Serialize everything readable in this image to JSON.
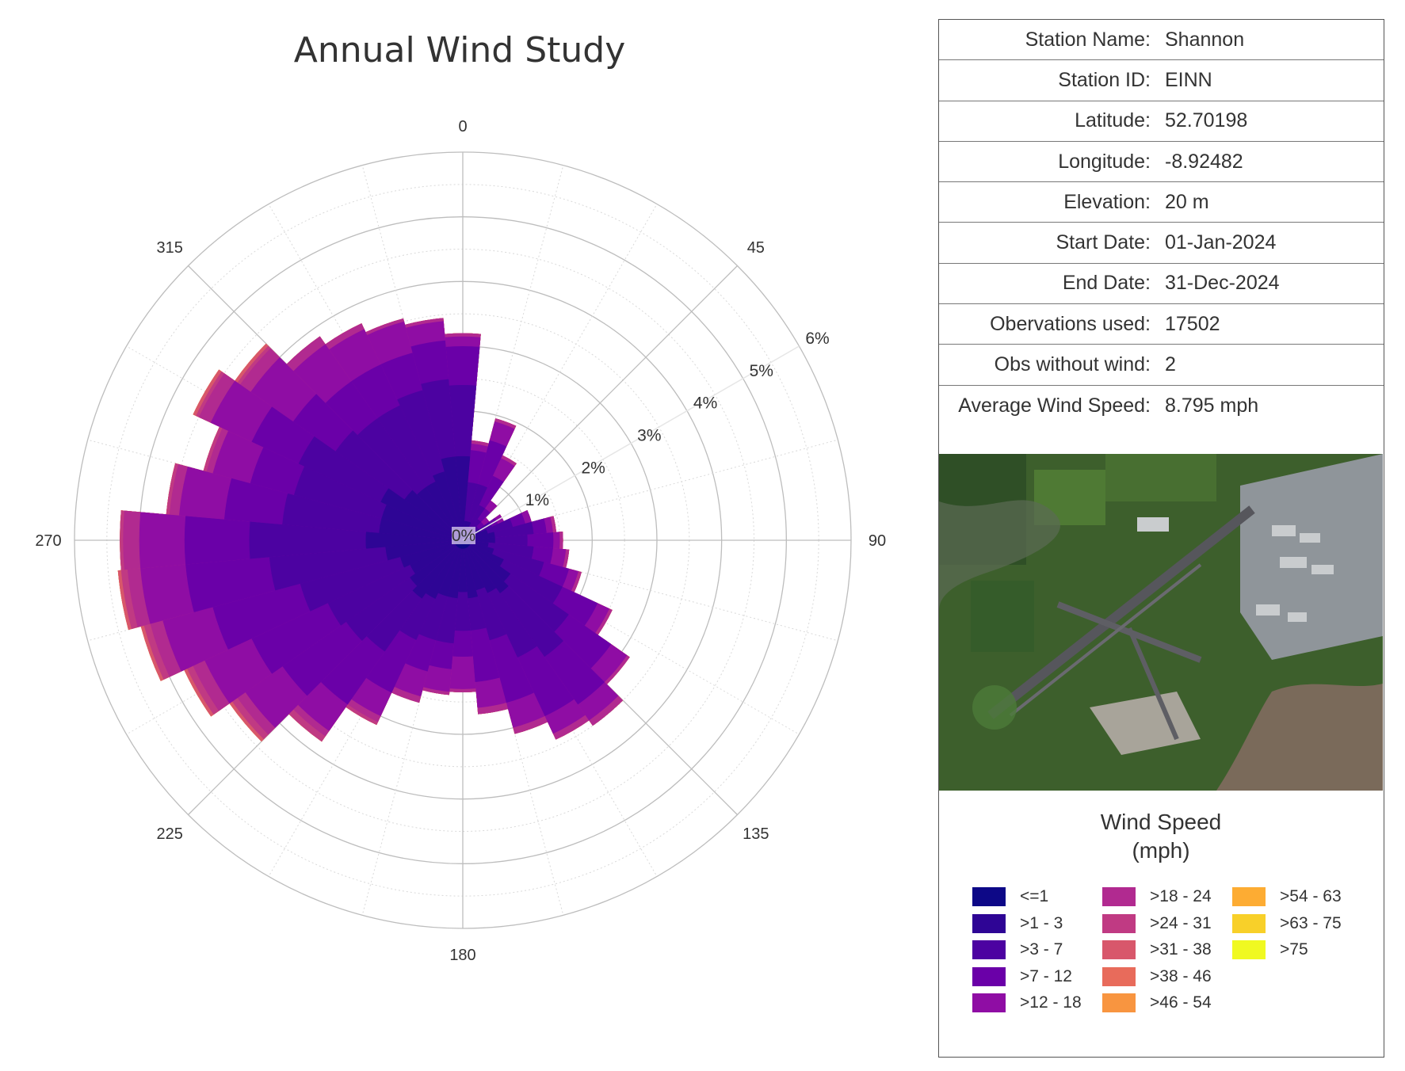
{
  "chart_title": "Annual Wind Study",
  "chart_data": {
    "type": "polar-bar",
    "title": "Annual Wind Study",
    "angular_ticks": [
      "0",
      "45",
      "90",
      "135",
      "180",
      "225",
      "270",
      "315"
    ],
    "radial_ticks": [
      "0%",
      "1%",
      "2%",
      "3%",
      "4%",
      "5%",
      "6%"
    ],
    "radial_range": [
      0,
      6
    ],
    "sector_width_deg": 10,
    "directions": [
      0,
      10,
      20,
      30,
      40,
      50,
      60,
      70,
      80,
      90,
      100,
      110,
      120,
      130,
      140,
      150,
      160,
      170,
      180,
      190,
      200,
      210,
      220,
      230,
      240,
      250,
      260,
      270,
      280,
      290,
      300,
      310,
      320,
      330,
      340,
      350
    ],
    "bins": [
      "<=1",
      ">1 - 3",
      ">3 - 7",
      ">7 - 12",
      ">12 - 18",
      ">18 - 24",
      ">24 - 31",
      ">31 - 38",
      ">38 - 46",
      ">46 - 54",
      ">54 - 63",
      ">63 - 75",
      ">75"
    ],
    "cumulative_frequency_percent": [
      [
        0.13,
        0.13,
        0.13,
        0.13,
        0.13,
        0.13,
        0.13,
        0.13,
        0.13,
        0.13,
        0.13,
        0.13,
        0.13,
        0.13,
        0.13,
        0.13,
        0.13,
        0.13,
        0.13,
        0.13,
        0.13,
        0.13,
        0.13,
        0.13,
        0.13,
        0.13,
        0.13,
        0.13,
        0.13,
        0.13,
        0.13,
        0.13,
        0.13,
        0.13,
        0.13,
        0.13
      ],
      [
        1.3,
        0.3,
        0.3,
        0.2,
        0.15,
        0.15,
        0.3,
        0.4,
        0.5,
        0.5,
        0.4,
        0.5,
        0.7,
        0.9,
        1.0,
        0.9,
        0.8,
        0.9,
        0.8,
        0.9,
        0.9,
        1.0,
        1.1,
        1.0,
        0.9,
        1.0,
        1.2,
        1.5,
        1.3,
        1.3,
        1.4,
        1.1,
        1.0,
        1.0,
        1.1,
        1.3
      ],
      [
        2.4,
        0.9,
        0.9,
        0.6,
        0.4,
        0.3,
        0.5,
        0.8,
        1.1,
        1.0,
        1.1,
        1.3,
        1.7,
        2.0,
        2.2,
        2.0,
        1.6,
        1.4,
        1.4,
        1.6,
        1.6,
        1.7,
        2.1,
        2.2,
        2.3,
        2.6,
        3.0,
        3.3,
        2.8,
        2.7,
        2.8,
        2.4,
        2.3,
        2.3,
        2.4,
        2.5
      ],
      [
        3.0,
        1.4,
        1.6,
        1.1,
        0.6,
        0.4,
        0.6,
        1.0,
        1.3,
        1.4,
        1.4,
        1.7,
        2.3,
        2.8,
        3.1,
        3.0,
        2.6,
        2.2,
        1.8,
        2.0,
        2.1,
        2.6,
        3.1,
        3.4,
        3.6,
        4.0,
        4.3,
        4.3,
        3.7,
        3.4,
        3.6,
        3.2,
        3.0,
        3.0,
        3.0,
        3.1
      ],
      [
        3.15,
        1.5,
        1.9,
        1.4,
        0.75,
        0.5,
        0.7,
        1.1,
        1.4,
        1.5,
        1.6,
        1.85,
        2.5,
        3.1,
        3.4,
        3.3,
        3.0,
        2.6,
        2.3,
        2.35,
        2.5,
        3.0,
        3.6,
        4.1,
        4.4,
        4.8,
        5.0,
        5.0,
        4.4,
        4.0,
        4.3,
        4.0,
        3.7,
        3.6,
        3.5,
        3.4
      ],
      [
        3.2,
        1.55,
        1.95,
        1.45,
        0.75,
        0.5,
        0.7,
        1.1,
        1.45,
        1.55,
        1.65,
        1.9,
        2.55,
        3.15,
        3.5,
        3.4,
        3.1,
        2.7,
        2.35,
        2.4,
        2.6,
        3.1,
        3.7,
        4.25,
        4.6,
        5.0,
        5.2,
        5.25,
        4.55,
        4.1,
        4.5,
        4.2,
        3.85,
        3.7,
        3.55,
        3.45
      ],
      [
        3.2,
        1.55,
        1.95,
        1.45,
        0.75,
        0.5,
        0.7,
        1.1,
        1.45,
        1.55,
        1.65,
        1.9,
        2.55,
        3.15,
        3.5,
        3.4,
        3.1,
        2.7,
        2.35,
        2.4,
        2.6,
        3.15,
        3.8,
        4.35,
        4.7,
        5.1,
        5.3,
        5.3,
        4.6,
        4.15,
        4.55,
        4.25,
        3.85,
        3.7,
        3.55,
        3.45
      ],
      [
        3.2,
        1.55,
        1.95,
        1.45,
        0.75,
        0.5,
        0.7,
        1.1,
        1.45,
        1.55,
        1.65,
        1.9,
        2.55,
        3.15,
        3.5,
        3.4,
        3.1,
        2.7,
        2.35,
        2.4,
        2.6,
        3.15,
        3.8,
        4.4,
        4.75,
        5.15,
        5.35,
        5.3,
        4.6,
        4.15,
        4.6,
        4.3,
        3.85,
        3.7,
        3.55,
        3.45
      ],
      [
        3.2,
        1.55,
        1.95,
        1.45,
        0.75,
        0.5,
        0.7,
        1.1,
        1.45,
        1.55,
        1.65,
        1.9,
        2.55,
        3.15,
        3.5,
        3.4,
        3.1,
        2.7,
        2.35,
        2.4,
        2.6,
        3.15,
        3.8,
        4.4,
        4.75,
        5.15,
        5.35,
        5.3,
        4.6,
        4.15,
        4.6,
        4.3,
        3.85,
        3.7,
        3.55,
        3.45
      ],
      [
        3.2,
        1.55,
        1.95,
        1.45,
        0.75,
        0.5,
        0.7,
        1.1,
        1.45,
        1.55,
        1.65,
        1.9,
        2.55,
        3.15,
        3.5,
        3.4,
        3.1,
        2.7,
        2.35,
        2.4,
        2.6,
        3.15,
        3.8,
        4.4,
        4.75,
        5.15,
        5.35,
        5.3,
        4.6,
        4.15,
        4.6,
        4.3,
        3.85,
        3.7,
        3.55,
        3.45
      ],
      [
        3.2,
        1.55,
        1.95,
        1.45,
        0.75,
        0.5,
        0.7,
        1.1,
        1.45,
        1.55,
        1.65,
        1.9,
        2.55,
        3.15,
        3.5,
        3.4,
        3.1,
        2.7,
        2.35,
        2.4,
        2.6,
        3.15,
        3.8,
        4.4,
        4.75,
        5.15,
        5.35,
        5.3,
        4.6,
        4.15,
        4.6,
        4.3,
        3.85,
        3.7,
        3.55,
        3.45
      ],
      [
        3.2,
        1.55,
        1.95,
        1.45,
        0.75,
        0.5,
        0.7,
        1.1,
        1.45,
        1.55,
        1.65,
        1.9,
        2.55,
        3.15,
        3.5,
        3.4,
        3.1,
        2.7,
        2.35,
        2.4,
        2.6,
        3.15,
        3.8,
        4.4,
        4.75,
        5.15,
        5.35,
        5.3,
        4.6,
        4.15,
        4.6,
        4.3,
        3.85,
        3.7,
        3.55,
        3.45
      ],
      [
        3.2,
        1.55,
        1.95,
        1.45,
        0.75,
        0.5,
        0.7,
        1.1,
        1.45,
        1.55,
        1.65,
        1.9,
        2.55,
        3.15,
        3.5,
        3.4,
        3.1,
        2.7,
        2.35,
        2.4,
        2.6,
        3.15,
        3.8,
        4.4,
        4.75,
        5.15,
        5.35,
        5.3,
        4.6,
        4.15,
        4.6,
        4.3,
        3.85,
        3.7,
        3.55,
        3.45
      ]
    ]
  },
  "info": [
    {
      "label": "Station Name:",
      "value": "Shannon"
    },
    {
      "label": "Station ID:",
      "value": "EINN"
    },
    {
      "label": "Latitude:",
      "value": "52.70198"
    },
    {
      "label": "Longitude:",
      "value": "-8.92482"
    },
    {
      "label": "Elevation:",
      "value": "20 m"
    },
    {
      "label": "Start Date:",
      "value": "01-Jan-2024"
    },
    {
      "label": "End Date:",
      "value": "31-Dec-2024"
    },
    {
      "label": "Obervations used:",
      "value": "17502"
    },
    {
      "label": "Obs without wind:",
      "value": "2"
    },
    {
      "label": "Average Wind Speed:",
      "value": "8.795 mph"
    }
  ],
  "legend": {
    "title_line1": "Wind Speed",
    "title_line2": "(mph)",
    "items": [
      {
        "label": "<=1",
        "color": "#0d0887"
      },
      {
        "label": ">1 - 3",
        "color": "#2e0595"
      },
      {
        "label": ">3 - 7",
        "color": "#4c02a1"
      },
      {
        "label": ">7 - 12",
        "color": "#6a00a8"
      },
      {
        "label": ">12 - 18",
        "color": "#8f0da4"
      },
      {
        "label": ">18 - 24",
        "color": "#b12a90"
      },
      {
        "label": ">24 - 31",
        "color": "#c03a83"
      },
      {
        "label": ">31 - 38",
        "color": "#d8576b"
      },
      {
        "label": ">38 - 46",
        "color": "#e86b5b"
      },
      {
        "label": ">46 - 54",
        "color": "#f89540"
      },
      {
        "label": ">54 - 63",
        "color": "#fdac33"
      },
      {
        "label": ">63 - 75",
        "color": "#f8d029"
      },
      {
        "label": ">75",
        "color": "#f0f921"
      }
    ]
  },
  "colors": {
    "grid": "#bdbdbd",
    "minor_grid": "#d9d9d9",
    "frame": "#555555",
    "water": "#7a6a5a",
    "field": "#3f6b2c",
    "runway": "#56565c"
  }
}
